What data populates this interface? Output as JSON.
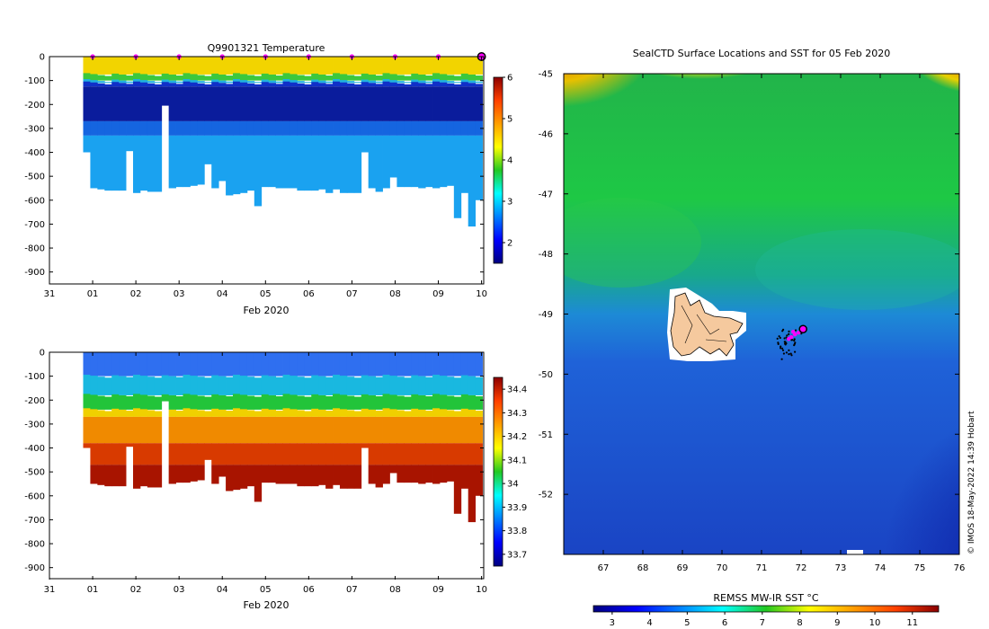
{
  "chart_data": [
    {
      "type": "heatmap",
      "title": "Q9901321  Temperature",
      "xlabel": "Feb 2020",
      "ylabel": "",
      "x_ticks": [
        "31",
        "01",
        "02",
        "03",
        "04",
        "05",
        "06",
        "07",
        "08",
        "09",
        "10"
      ],
      "x_range_days": [
        -1,
        9.05
      ],
      "y_ticks": [
        0,
        -100,
        -200,
        -300,
        -400,
        -500,
        -600,
        -700,
        -800,
        -900
      ],
      "ylim": [
        -950,
        0
      ],
      "colorbar_ticks": [
        2,
        3,
        4,
        5,
        6
      ],
      "colorbar_range": [
        1.5,
        6
      ],
      "marker_days": [
        0,
        1,
        2,
        3,
        4,
        5,
        6,
        7,
        8,
        9
      ],
      "latest_day": 9.0,
      "profile_max_depths": [
        400,
        550,
        555,
        560,
        560,
        560,
        395,
        570,
        560,
        565,
        565,
        205,
        550,
        545,
        545,
        540,
        535,
        450,
        550,
        520,
        580,
        575,
        570,
        560,
        625,
        545,
        545,
        550,
        550,
        550,
        560,
        560,
        560,
        555,
        570,
        555,
        570,
        570,
        570,
        400,
        550,
        565,
        550,
        505,
        545,
        545,
        545,
        550,
        545,
        550,
        545,
        540,
        675,
        570,
        710,
        600
      ]
    },
    {
      "type": "heatmap",
      "title": "",
      "xlabel": "Feb 2020",
      "ylabel": "",
      "x_ticks": [
        "31",
        "01",
        "02",
        "03",
        "04",
        "05",
        "06",
        "07",
        "08",
        "09",
        "10"
      ],
      "y_ticks": [
        0,
        -100,
        -200,
        -300,
        -400,
        -500,
        -600,
        -700,
        -800,
        -900
      ],
      "ylim": [
        -950,
        0
      ],
      "colorbar_ticks": [
        33.7,
        33.8,
        33.9,
        34,
        34.1,
        34.2,
        34.3,
        34.4
      ],
      "colorbar_range": [
        33.65,
        34.45
      ]
    },
    {
      "type": "heatmap",
      "title": "SealCTD Surface Locations and SST for 05 Feb 2020",
      "x_ticks": [
        67,
        68,
        69,
        70,
        71,
        72,
        73,
        74,
        75,
        76
      ],
      "xlim": [
        66,
        76
      ],
      "y_ticks": [
        -45,
        -46,
        -47,
        -48,
        -49,
        -50,
        -51,
        -52
      ],
      "ylim": [
        -53,
        -45
      ],
      "colorbar_label": "REMSS MW-IR SST °C",
      "colorbar_ticks": [
        3,
        4,
        5,
        6,
        7,
        8,
        9,
        10,
        11
      ],
      "colorbar_range": [
        2.5,
        11.7
      ],
      "current_location": [
        72.05,
        -49.25
      ],
      "track_color": "#ff00ff"
    }
  ],
  "credit": "© IMOS 18-May-2022 14:39 Hobart"
}
